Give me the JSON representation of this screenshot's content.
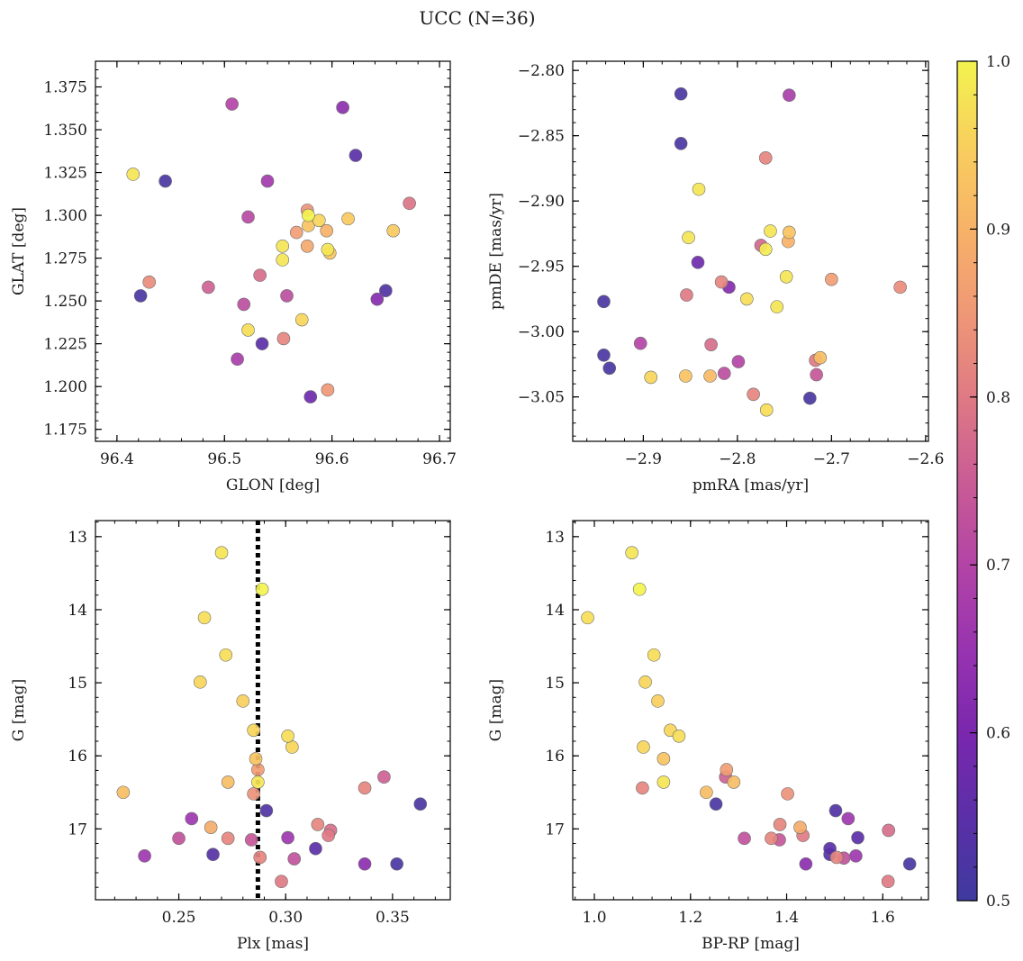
{
  "figure": {
    "title": "UCC (N=36)"
  },
  "colorbar": {
    "ticks": [
      0.5,
      0.6,
      0.7,
      0.8,
      0.9,
      1.0
    ],
    "tick_labels": [
      "0.5",
      "0.6",
      "0.7",
      "0.8",
      "0.9",
      "1.0"
    ],
    "range": [
      0.5,
      1.0
    ],
    "colormap": "plasma"
  },
  "colormap_stops": [
    "#3f3a9e",
    "#5b2fa8",
    "#7a27ae",
    "#9834b0",
    "#b344a6",
    "#c95c95",
    "#df7a84",
    "#ef9876",
    "#f7b268",
    "#f8cf5d",
    "#f3f34f"
  ],
  "chart_data": [
    {
      "id": "sky",
      "type": "scatter",
      "xlabel": "GLON [deg]",
      "ylabel": "GLAT [deg]",
      "xlim": [
        96.38,
        96.71
      ],
      "ylim": [
        1.168,
        1.39
      ],
      "xticks": [
        96.4,
        96.5,
        96.6,
        96.7
      ],
      "xtick_labels": [
        "96.4",
        "96.5",
        "96.6",
        "96.7"
      ],
      "yticks": [
        1.175,
        1.2,
        1.225,
        1.25,
        1.275,
        1.3,
        1.325,
        1.35,
        1.375
      ],
      "ytick_labels": [
        "1.175",
        "1.200",
        "1.225",
        "1.250",
        "1.275",
        "1.300",
        "1.325",
        "1.350",
        "1.375"
      ],
      "points": [
        {
          "x": 96.415,
          "y": 1.324,
          "c": 0.98
        },
        {
          "x": 96.445,
          "y": 1.32,
          "c": 0.52
        },
        {
          "x": 96.422,
          "y": 1.253,
          "c": 0.52
        },
        {
          "x": 96.43,
          "y": 1.261,
          "c": 0.83
        },
        {
          "x": 96.485,
          "y": 1.258,
          "c": 0.76
        },
        {
          "x": 96.507,
          "y": 1.365,
          "c": 0.7
        },
        {
          "x": 96.512,
          "y": 1.216,
          "c": 0.68
        },
        {
          "x": 96.518,
          "y": 1.248,
          "c": 0.72
        },
        {
          "x": 96.522,
          "y": 1.299,
          "c": 0.71
        },
        {
          "x": 96.522,
          "y": 1.233,
          "c": 0.97
        },
        {
          "x": 96.533,
          "y": 1.265,
          "c": 0.78
        },
        {
          "x": 96.535,
          "y": 1.225,
          "c": 0.55
        },
        {
          "x": 96.54,
          "y": 1.32,
          "c": 0.67
        },
        {
          "x": 96.554,
          "y": 1.282,
          "c": 0.98
        },
        {
          "x": 96.554,
          "y": 1.274,
          "c": 0.98
        },
        {
          "x": 96.555,
          "y": 1.228,
          "c": 0.82
        },
        {
          "x": 96.558,
          "y": 1.253,
          "c": 0.72
        },
        {
          "x": 96.567,
          "y": 1.29,
          "c": 0.86
        },
        {
          "x": 96.572,
          "y": 1.239,
          "c": 0.96
        },
        {
          "x": 96.577,
          "y": 1.303,
          "c": 0.84
        },
        {
          "x": 96.577,
          "y": 1.282,
          "c": 0.88
        },
        {
          "x": 96.578,
          "y": 1.294,
          "c": 0.93
        },
        {
          "x": 96.578,
          "y": 1.3,
          "c": 1.0
        },
        {
          "x": 96.58,
          "y": 1.194,
          "c": 0.58
        },
        {
          "x": 96.588,
          "y": 1.297,
          "c": 0.96
        },
        {
          "x": 96.595,
          "y": 1.291,
          "c": 0.9
        },
        {
          "x": 96.596,
          "y": 1.28,
          "c": 0.98
        },
        {
          "x": 96.598,
          "y": 1.278,
          "c": 0.94
        },
        {
          "x": 96.596,
          "y": 1.198,
          "c": 0.85
        },
        {
          "x": 96.61,
          "y": 1.363,
          "c": 0.63
        },
        {
          "x": 96.615,
          "y": 1.298,
          "c": 0.94
        },
        {
          "x": 96.622,
          "y": 1.335,
          "c": 0.55
        },
        {
          "x": 96.642,
          "y": 1.251,
          "c": 0.62
        },
        {
          "x": 96.65,
          "y": 1.256,
          "c": 0.53
        },
        {
          "x": 96.657,
          "y": 1.291,
          "c": 0.94
        },
        {
          "x": 96.672,
          "y": 1.307,
          "c": 0.79
        }
      ]
    },
    {
      "id": "pm",
      "type": "scatter",
      "xlabel": "pmRA [mas/yr]",
      "ylabel": "pmDE [mas/yr]",
      "xlim": [
        -2.975,
        -2.597
      ],
      "ylim": [
        -3.084,
        -2.793
      ],
      "xticks": [
        -2.9,
        -2.8,
        -2.7,
        -2.6
      ],
      "xtick_labels": [
        "−2.9",
        "−2.8",
        "−2.7",
        "−2.6"
      ],
      "yticks": [
        -3.05,
        -3.0,
        -2.95,
        -2.9,
        -2.85,
        -2.8
      ],
      "ytick_labels": [
        "−3.05",
        "−3.00",
        "−2.95",
        "−2.90",
        "−2.85",
        "−2.80"
      ],
      "points": [
        {
          "x": -2.86,
          "y": -2.818,
          "c": 0.52
        },
        {
          "x": -2.745,
          "y": -2.819,
          "c": 0.68
        },
        {
          "x": -2.86,
          "y": -2.856,
          "c": 0.52
        },
        {
          "x": -2.77,
          "y": -2.867,
          "c": 0.82
        },
        {
          "x": -2.841,
          "y": -2.891,
          "c": 0.98
        },
        {
          "x": -2.765,
          "y": -2.923,
          "c": 0.98
        },
        {
          "x": -2.745,
          "y": -2.924,
          "c": 0.93
        },
        {
          "x": -2.852,
          "y": -2.928,
          "c": 0.98
        },
        {
          "x": -2.746,
          "y": -2.931,
          "c": 0.9
        },
        {
          "x": -2.775,
          "y": -2.934,
          "c": 0.77
        },
        {
          "x": -2.77,
          "y": -2.937,
          "c": 0.99
        },
        {
          "x": -2.842,
          "y": -2.947,
          "c": 0.58
        },
        {
          "x": -2.748,
          "y": -2.958,
          "c": 0.98
        },
        {
          "x": -2.7,
          "y": -2.96,
          "c": 0.86
        },
        {
          "x": -2.817,
          "y": -2.962,
          "c": 0.82
        },
        {
          "x": -2.809,
          "y": -2.966,
          "c": 0.62
        },
        {
          "x": -2.627,
          "y": -2.966,
          "c": 0.83
        },
        {
          "x": -2.854,
          "y": -2.972,
          "c": 0.8
        },
        {
          "x": -2.79,
          "y": -2.975,
          "c": 0.97
        },
        {
          "x": -2.942,
          "y": -2.977,
          "c": 0.52
        },
        {
          "x": -2.758,
          "y": -2.981,
          "c": 0.98
        },
        {
          "x": -2.903,
          "y": -3.009,
          "c": 0.7
        },
        {
          "x": -2.828,
          "y": -3.01,
          "c": 0.78
        },
        {
          "x": -2.942,
          "y": -3.018,
          "c": 0.52
        },
        {
          "x": -2.712,
          "y": -3.02,
          "c": 0.92
        },
        {
          "x": -2.717,
          "y": -3.022,
          "c": 0.8
        },
        {
          "x": -2.799,
          "y": -3.023,
          "c": 0.7
        },
        {
          "x": -2.936,
          "y": -3.028,
          "c": 0.52
        },
        {
          "x": -2.814,
          "y": -3.032,
          "c": 0.72
        },
        {
          "x": -2.716,
          "y": -3.033,
          "c": 0.74
        },
        {
          "x": -2.855,
          "y": -3.034,
          "c": 0.93
        },
        {
          "x": -2.829,
          "y": -3.034,
          "c": 0.91
        },
        {
          "x": -2.892,
          "y": -3.035,
          "c": 0.96
        },
        {
          "x": -2.783,
          "y": -3.048,
          "c": 0.82
        },
        {
          "x": -2.723,
          "y": -3.051,
          "c": 0.52
        },
        {
          "x": -2.769,
          "y": -3.06,
          "c": 0.97
        }
      ]
    },
    {
      "id": "plx",
      "type": "scatter",
      "xlabel": "Plx [mas]",
      "ylabel": "G [mag]",
      "xlim": [
        0.211,
        0.377
      ],
      "ylim": [
        17.97,
        12.78
      ],
      "y_inverted": true,
      "xticks": [
        0.25,
        0.3,
        0.35
      ],
      "xtick_labels": [
        "0.25",
        "0.30",
        "0.35"
      ],
      "yticks": [
        13,
        14,
        15,
        16,
        17
      ],
      "ytick_labels": [
        "13",
        "14",
        "15",
        "16",
        "17"
      ],
      "vline": {
        "x": 0.287,
        "style": "dotted"
      },
      "points": [
        {
          "x": 0.27,
          "y": 13.22,
          "c": 0.98
        },
        {
          "x": 0.289,
          "y": 13.72,
          "c": 1.0
        },
        {
          "x": 0.262,
          "y": 14.11,
          "c": 0.97
        },
        {
          "x": 0.272,
          "y": 14.62,
          "c": 0.97
        },
        {
          "x": 0.26,
          "y": 14.99,
          "c": 0.96
        },
        {
          "x": 0.28,
          "y": 15.25,
          "c": 0.95
        },
        {
          "x": 0.285,
          "y": 15.65,
          "c": 0.96
        },
        {
          "x": 0.301,
          "y": 15.73,
          "c": 0.97
        },
        {
          "x": 0.303,
          "y": 15.88,
          "c": 0.96
        },
        {
          "x": 0.286,
          "y": 16.04,
          "c": 0.93
        },
        {
          "x": 0.287,
          "y": 16.19,
          "c": 0.86
        },
        {
          "x": 0.287,
          "y": 16.36,
          "c": 0.98
        },
        {
          "x": 0.273,
          "y": 16.36,
          "c": 0.92
        },
        {
          "x": 0.346,
          "y": 16.29,
          "c": 0.76
        },
        {
          "x": 0.337,
          "y": 16.44,
          "c": 0.82
        },
        {
          "x": 0.285,
          "y": 16.52,
          "c": 0.84
        },
        {
          "x": 0.224,
          "y": 16.5,
          "c": 0.92
        },
        {
          "x": 0.363,
          "y": 16.66,
          "c": 0.52
        },
        {
          "x": 0.291,
          "y": 16.75,
          "c": 0.53
        },
        {
          "x": 0.256,
          "y": 16.86,
          "c": 0.66
        },
        {
          "x": 0.315,
          "y": 16.94,
          "c": 0.82
        },
        {
          "x": 0.265,
          "y": 16.98,
          "c": 0.89
        },
        {
          "x": 0.321,
          "y": 17.02,
          "c": 0.78
        },
        {
          "x": 0.32,
          "y": 17.09,
          "c": 0.8
        },
        {
          "x": 0.301,
          "y": 17.12,
          "c": 0.66
        },
        {
          "x": 0.25,
          "y": 17.13,
          "c": 0.73
        },
        {
          "x": 0.273,
          "y": 17.13,
          "c": 0.82
        },
        {
          "x": 0.284,
          "y": 17.15,
          "c": 0.74
        },
        {
          "x": 0.314,
          "y": 17.27,
          "c": 0.55
        },
        {
          "x": 0.266,
          "y": 17.35,
          "c": 0.54
        },
        {
          "x": 0.234,
          "y": 17.37,
          "c": 0.66
        },
        {
          "x": 0.288,
          "y": 17.39,
          "c": 0.82
        },
        {
          "x": 0.304,
          "y": 17.41,
          "c": 0.73
        },
        {
          "x": 0.337,
          "y": 17.48,
          "c": 0.63
        },
        {
          "x": 0.352,
          "y": 17.48,
          "c": 0.52
        },
        {
          "x": 0.298,
          "y": 17.72,
          "c": 0.8
        }
      ]
    },
    {
      "id": "cmd",
      "type": "scatter",
      "xlabel": "BP-RP [mag]",
      "ylabel": "G [mag]",
      "xlim": [
        0.955,
        1.695
      ],
      "ylim": [
        17.97,
        12.78
      ],
      "y_inverted": true,
      "xticks": [
        1.0,
        1.2,
        1.4,
        1.6
      ],
      "xtick_labels": [
        "1.0",
        "1.2",
        "1.4",
        "1.6"
      ],
      "yticks": [
        13,
        14,
        15,
        16,
        17
      ],
      "ytick_labels": [
        "13",
        "14",
        "15",
        "16",
        "17"
      ],
      "points": [
        {
          "x": 1.078,
          "y": 13.22,
          "c": 0.98
        },
        {
          "x": 1.094,
          "y": 13.72,
          "c": 1.0
        },
        {
          "x": 0.986,
          "y": 14.11,
          "c": 0.97
        },
        {
          "x": 1.124,
          "y": 14.62,
          "c": 0.97
        },
        {
          "x": 1.106,
          "y": 14.99,
          "c": 0.96
        },
        {
          "x": 1.132,
          "y": 15.25,
          "c": 0.95
        },
        {
          "x": 1.158,
          "y": 15.65,
          "c": 0.96
        },
        {
          "x": 1.176,
          "y": 15.73,
          "c": 0.97
        },
        {
          "x": 1.102,
          "y": 15.88,
          "c": 0.96
        },
        {
          "x": 1.144,
          "y": 16.04,
          "c": 0.93
        },
        {
          "x": 1.275,
          "y": 16.19,
          "c": 0.86
        },
        {
          "x": 1.273,
          "y": 16.29,
          "c": 0.76
        },
        {
          "x": 1.29,
          "y": 16.36,
          "c": 0.92
        },
        {
          "x": 1.144,
          "y": 16.36,
          "c": 0.98
        },
        {
          "x": 1.1,
          "y": 16.44,
          "c": 0.82
        },
        {
          "x": 1.233,
          "y": 16.5,
          "c": 0.92
        },
        {
          "x": 1.402,
          "y": 16.52,
          "c": 0.84
        },
        {
          "x": 1.253,
          "y": 16.66,
          "c": 0.52
        },
        {
          "x": 1.502,
          "y": 16.75,
          "c": 0.53
        },
        {
          "x": 1.528,
          "y": 16.86,
          "c": 0.66
        },
        {
          "x": 1.386,
          "y": 16.94,
          "c": 0.82
        },
        {
          "x": 1.428,
          "y": 16.98,
          "c": 0.89
        },
        {
          "x": 1.612,
          "y": 17.02,
          "c": 0.78
        },
        {
          "x": 1.434,
          "y": 17.09,
          "c": 0.8
        },
        {
          "x": 1.548,
          "y": 17.12,
          "c": 0.55
        },
        {
          "x": 1.312,
          "y": 17.13,
          "c": 0.73
        },
        {
          "x": 1.368,
          "y": 17.13,
          "c": 0.82
        },
        {
          "x": 1.385,
          "y": 17.15,
          "c": 0.74
        },
        {
          "x": 1.49,
          "y": 17.27,
          "c": 0.55
        },
        {
          "x": 1.49,
          "y": 17.35,
          "c": 0.54
        },
        {
          "x": 1.544,
          "y": 17.37,
          "c": 0.66
        },
        {
          "x": 1.504,
          "y": 17.39,
          "c": 0.82
        },
        {
          "x": 1.519,
          "y": 17.4,
          "c": 0.73
        },
        {
          "x": 1.44,
          "y": 17.48,
          "c": 0.63
        },
        {
          "x": 1.656,
          "y": 17.48,
          "c": 0.52
        },
        {
          "x": 1.611,
          "y": 17.72,
          "c": 0.8
        }
      ]
    }
  ]
}
